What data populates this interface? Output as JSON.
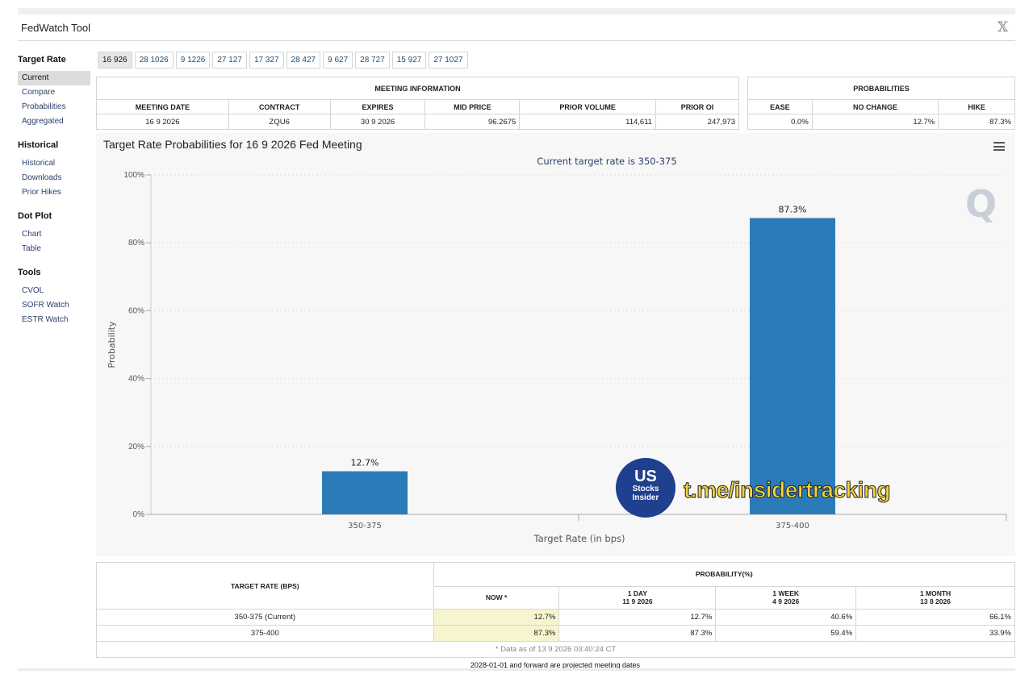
{
  "app": {
    "title": "FedWatch Tool"
  },
  "sidebar": [
    {
      "heading": "Target Rate",
      "items": [
        "Current",
        "Compare",
        "Probabilities",
        "Aggregated"
      ],
      "active": "Current"
    },
    {
      "heading": "Historical",
      "items": [
        "Historical",
        "Downloads",
        "Prior Hikes"
      ]
    },
    {
      "heading": "Dot Plot",
      "items": [
        "Chart",
        "Table"
      ]
    },
    {
      "heading": "Tools",
      "items": [
        "CVOL",
        "SOFR Watch",
        "ESTR Watch"
      ]
    }
  ],
  "tabs": [
    "16 926",
    "28 1026",
    "9 1226",
    "27 127",
    "17 327",
    "28 427",
    "9 627",
    "28 727",
    "15 927",
    "27 1027"
  ],
  "active_tab": "16 926",
  "meeting_info": {
    "title": "MEETING INFORMATION",
    "headers": [
      "MEETING DATE",
      "CONTRACT",
      "EXPIRES",
      "MID PRICE",
      "PRIOR VOLUME",
      "PRIOR OI"
    ],
    "values": [
      "16 9 2026",
      "ZQU6",
      "30 9 2026",
      "96.2675",
      "114,611",
      "247,973"
    ]
  },
  "probabilities": {
    "title": "PROBABILITIES",
    "headers": [
      "EASE",
      "NO CHANGE",
      "HIKE"
    ],
    "values": [
      "0.0%",
      "12.7%",
      "87.3%"
    ]
  },
  "chart_data": {
    "type": "bar",
    "title": "Target Rate Probabilities for 16 9 2026 Fed Meeting",
    "subtitle": "Current target rate is 350-375",
    "categories": [
      "350-375",
      "375-400"
    ],
    "values": [
      12.7,
      87.3
    ],
    "data_labels": [
      "12.7%",
      "87.3%"
    ],
    "xlabel": "Target Rate (in bps)",
    "ylabel": "Probability",
    "ylim": [
      0,
      100
    ],
    "yticks": [
      "0%",
      "20%",
      "40%",
      "60%",
      "80%",
      "100%"
    ],
    "grid": true,
    "bar_color": "#2b7bb9"
  },
  "rate_table": {
    "col_target": "TARGET RATE (BPS)",
    "col_prob": "PROBABILITY(%)",
    "subcols": [
      {
        "line1": "NOW *",
        "line2": ""
      },
      {
        "line1": "1 DAY",
        "line2": "11 9 2026"
      },
      {
        "line1": "1 WEEK",
        "line2": "4 9 2026"
      },
      {
        "line1": "1 MONTH",
        "line2": "13 8 2026"
      }
    ],
    "rows": [
      {
        "rate": "350-375 (Current)",
        "vals": [
          "12.7%",
          "12.7%",
          "40.6%",
          "66.1%"
        ]
      },
      {
        "rate": "375-400",
        "vals": [
          "87.3%",
          "87.3%",
          "59.4%",
          "33.9%"
        ]
      }
    ],
    "footnote": "* Data as of 13 9 2026 03:40:24 CT"
  },
  "bottom_note": "2028-01-01 and forward are projected meeting dates",
  "watermark": {
    "logo_main": "US",
    "logo_line1": "Stocks",
    "logo_line2": "Insider",
    "text": "t.me/insidertracking"
  },
  "brand_mark": "Q",
  "icons": {
    "close": "x-logo-icon",
    "menu": "hamburger-menu-icon"
  }
}
